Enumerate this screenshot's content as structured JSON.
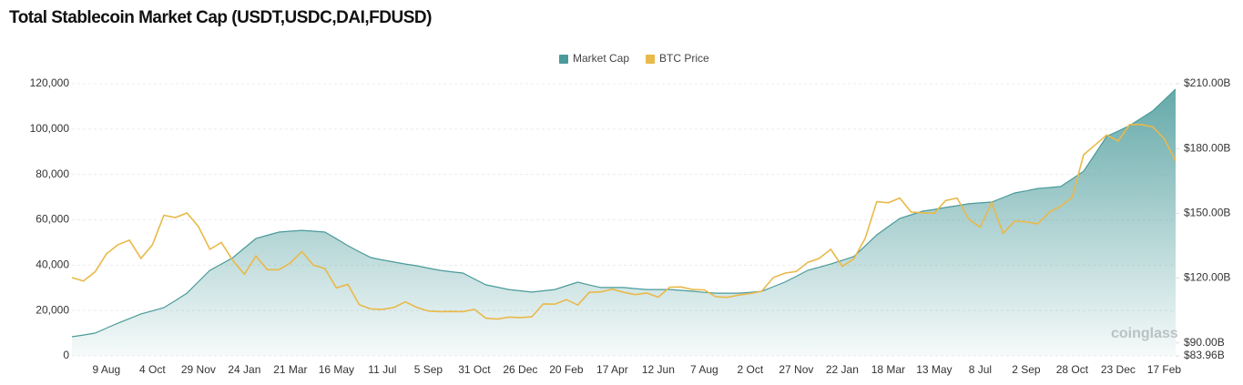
{
  "chart_data": {
    "type": "line",
    "title": "Total Stablecoin Market Cap (USDT,USDC,DAI,FDUSD)",
    "watermark": "coinglass",
    "categories": [
      null,
      null,
      null,
      "9 Aug",
      null,
      null,
      null,
      "4 Oct",
      null,
      null,
      null,
      "29 Nov",
      null,
      null,
      null,
      "24 Jan",
      null,
      null,
      null,
      "21 Mar",
      null,
      null,
      null,
      "16 May",
      null,
      null,
      null,
      "11 Jul",
      null,
      null,
      null,
      "5 Sep",
      null,
      null,
      null,
      "31 Oct",
      null,
      null,
      null,
      "26 Dec",
      null,
      null,
      null,
      "20 Feb",
      null,
      null,
      null,
      "17 Apr",
      null,
      null,
      null,
      "12 Jun",
      null,
      null,
      null,
      "7 Aug",
      null,
      null,
      null,
      "2 Oct",
      null,
      null,
      null,
      "27 Nov",
      null,
      null,
      null,
      "22 Jan",
      null,
      null,
      null,
      "18 Mar",
      null,
      null,
      null,
      "13 May",
      null,
      null,
      null,
      "8 Jul",
      null,
      null,
      null,
      "2 Sep",
      null,
      null,
      null,
      "28 Oct",
      null,
      null,
      null,
      "23 Dec",
      null,
      null,
      null,
      "17 Feb",
      null
    ],
    "series": [
      {
        "name": "Market Cap",
        "color": "#4a9a9a",
        "type": "area",
        "axis": "y2",
        "values": [
          92.8,
          93.6,
          94.5,
          96.8,
          99.1,
          101.2,
          103.4,
          104.8,
          106.3,
          109.6,
          113.0,
          118.3,
          123.6,
          126.5,
          129.5,
          133.9,
          138.3,
          139.8,
          141.3,
          141.7,
          142.1,
          141.7,
          141.3,
          138.2,
          135.0,
          132.2,
          129.5,
          128.4,
          127.4,
          126.5,
          125.7,
          124.6,
          123.6,
          122.9,
          122.3,
          119.6,
          116.9,
          115.8,
          114.7,
          114.1,
          113.5,
          114.1,
          114.7,
          116.4,
          118.1,
          116.8,
          115.6,
          115.6,
          115.6,
          115.1,
          114.7,
          114.7,
          114.7,
          114.3,
          113.9,
          113.4,
          113.0,
          113.0,
          113.0,
          113.4,
          113.9,
          116.0,
          118.1,
          120.8,
          123.6,
          125.0,
          126.5,
          128.2,
          129.9,
          134.9,
          140.0,
          143.8,
          147.6,
          149.3,
          151.0,
          151.8,
          152.7,
          153.5,
          154.4,
          154.8,
          155.2,
          157.3,
          159.4,
          160.4,
          161.5,
          161.9,
          162.4,
          165.9,
          169.5,
          177.5,
          185.6,
          188.1,
          190.6,
          194.0,
          197.4,
          202.4,
          207.5
        ]
      },
      {
        "name": "BTC Price",
        "color": "#e9b949",
        "type": "line",
        "values": [
          34500,
          33000,
          37000,
          45000,
          49000,
          51000,
          43000,
          49000,
          62000,
          61000,
          63000,
          57000,
          47000,
          50000,
          42000,
          36000,
          44000,
          38000,
          38000,
          41000,
          46000,
          40000,
          38500,
          30000,
          31500,
          22500,
          20700,
          20500,
          21300,
          23800,
          21400,
          19800,
          19500,
          19600,
          19500,
          20500,
          16600,
          16200,
          17100,
          16900,
          17200,
          22900,
          22800,
          24800,
          22400,
          28000,
          28200,
          29400,
          28000,
          27000,
          27700,
          25900,
          30300,
          30400,
          29200,
          29100,
          26100,
          25800,
          26800,
          27500,
          28500,
          34500,
          36500,
          37200,
          41200,
          43000,
          47000,
          39500,
          42700,
          51800,
          68000,
          67500,
          69600,
          63400,
          63100,
          62900,
          68500,
          69600,
          60300,
          56700,
          67600,
          54000,
          59400,
          59100,
          58200,
          63300,
          66000,
          69900,
          88700,
          93000,
          97400,
          94700,
          102000,
          102000,
          101000,
          95800,
          86000
        ]
      }
    ],
    "ylim": [
      0,
      120000
    ],
    "yticks": [
      0,
      {
        "value": 20000,
        "label": "20,000"
      },
      {
        "value": 40000,
        "label": "40,000"
      },
      {
        "value": 60000,
        "label": "60,000"
      },
      {
        "value": 80000,
        "label": "80,000"
      },
      {
        "value": 100000,
        "label": "100,000"
      },
      {
        "value": 120000,
        "label": "120,000"
      }
    ],
    "y2lim": [
      83.96,
      210
    ],
    "y2ticks": [
      {
        "value": 83.96,
        "label": "$83.96B"
      },
      {
        "value": 90,
        "label": "$90.00B"
      },
      {
        "value": 120,
        "label": "$120.00B"
      },
      {
        "value": 150,
        "label": "$150.00B"
      },
      {
        "value": 180,
        "label": "$180.00B"
      },
      {
        "value": 210,
        "label": "$210.00B"
      }
    ],
    "grid": true,
    "legend": "top"
  }
}
